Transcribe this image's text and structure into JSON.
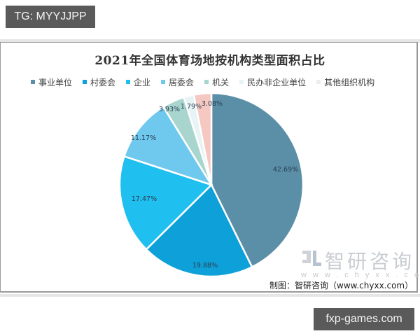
{
  "tags": {
    "top": "TG: MYYJJPP",
    "bottom": "fxp-games.com"
  },
  "chart_data": {
    "type": "pie",
    "title": "2021年全国体育场地按机构类型面积占比",
    "categories": [
      "事业单位",
      "村委会",
      "企业",
      "居委会",
      "机关",
      "民办非企业单位",
      "其他组织机构"
    ],
    "values": [
      42.69,
      19.88,
      17.47,
      11.17,
      3.93,
      1.79,
      3.08
    ],
    "labels": [
      "42.69%",
      "19.88%",
      "17.47%",
      "11.17%",
      "3.93%",
      "1.79%",
      "3.08%"
    ],
    "colors": [
      "#5B8FA8",
      "#0EA0D8",
      "#1FBFF0",
      "#6FC8EE",
      "#A9D5CF",
      "#E8F3F5",
      "#F5C9C2"
    ],
    "legend_position": "top",
    "start_angle": "12 o'clock",
    "direction": "clockwise",
    "unit": "%"
  },
  "legend": {
    "items": [
      {
        "label": "事业单位",
        "color": "#5B8FA8"
      },
      {
        "label": "村委会",
        "color": "#0EA0D8"
      },
      {
        "label": "企业",
        "color": "#1FBFF0"
      },
      {
        "label": "居委会",
        "color": "#6FC8EE"
      },
      {
        "label": "机关",
        "color": "#A9D5CF"
      },
      {
        "label": "民办非企业单位",
        "color": "#E8F3F5"
      },
      {
        "label": "其他组织机构",
        "color": "#F5C9C2"
      }
    ]
  },
  "watermark": {
    "brand": "智研咨询",
    "url": "www.chyxx.com"
  },
  "source": "制图：智研咨询（www.chyxx.com）"
}
